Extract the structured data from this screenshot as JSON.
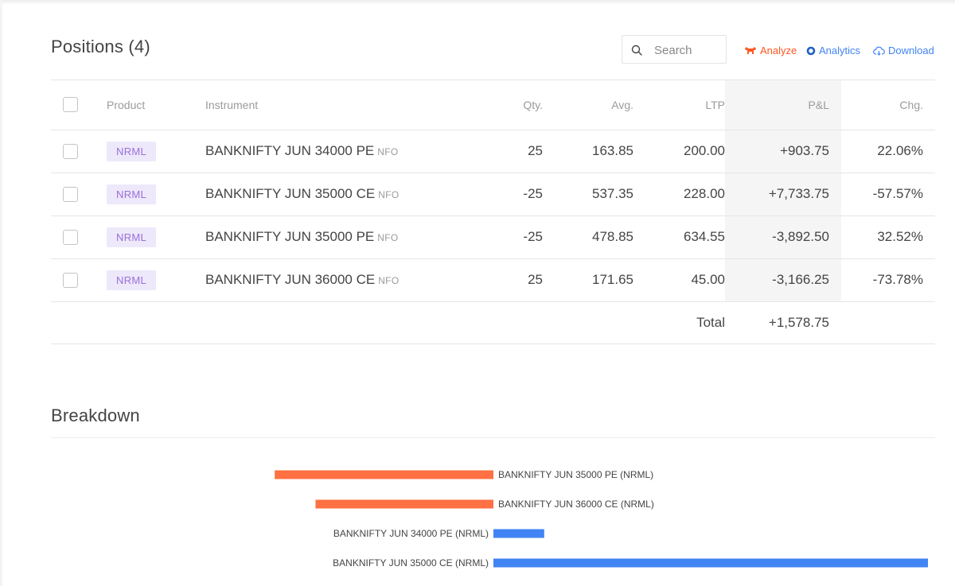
{
  "positions": {
    "title": "Positions (4)",
    "search": {
      "placeholder": "Search",
      "value": ""
    },
    "links": {
      "analyze": "Analyze",
      "analytics": "Analytics",
      "download": "Download"
    },
    "columns": {
      "product": "Product",
      "instrument": "Instrument",
      "qty": "Qty.",
      "avg": "Avg.",
      "ltp": "LTP",
      "pnl": "P&L",
      "chg": "Chg."
    },
    "rows": [
      {
        "product": "NRML",
        "instrument": "BANKNIFTY JUN 34000 PE",
        "exchange": "NFO",
        "qty": "25",
        "avg": "163.85",
        "ltp": "200.00",
        "pnl": "+903.75",
        "chg": "22.06%"
      },
      {
        "product": "NRML",
        "instrument": "BANKNIFTY JUN 35000 CE",
        "exchange": "NFO",
        "qty": "-25",
        "avg": "537.35",
        "ltp": "228.00",
        "pnl": "+7,733.75",
        "chg": "-57.57%"
      },
      {
        "product": "NRML",
        "instrument": "BANKNIFTY JUN 35000 PE",
        "exchange": "NFO",
        "qty": "-25",
        "avg": "478.85",
        "ltp": "634.55",
        "pnl": "-3,892.50",
        "chg": "32.52%"
      },
      {
        "product": "NRML",
        "instrument": "BANKNIFTY JUN 36000 CE",
        "exchange": "NFO",
        "qty": "25",
        "avg": "171.65",
        "ltp": "45.00",
        "pnl": "-3,166.25",
        "chg": "-73.78%"
      }
    ],
    "total": {
      "label": "Total",
      "value": "+1,578.75"
    }
  },
  "breakdown": {
    "title": "Breakdown"
  },
  "colors": {
    "profit": "#4caf50",
    "loss": "#ff5722",
    "accent_blue": "#4184f3",
    "badge_bg": "#ede8fa",
    "badge_text": "#9b6fd9",
    "bar_negative": "#ff7043",
    "bar_positive": "#4184f3"
  },
  "icons": {
    "search": "search-icon",
    "analyze": "bull-icon",
    "analytics": "ring-icon",
    "download": "cloud-download-icon"
  },
  "chart_data": {
    "type": "bar",
    "orientation": "horizontal",
    "categories": [
      "BANKNIFTY JUN 35000 PE (NRML)",
      "BANKNIFTY JUN 36000 CE (NRML)",
      "BANKNIFTY JUN 34000 PE (NRML)",
      "BANKNIFTY JUN 35000 CE (NRML)"
    ],
    "values": [
      -3892.5,
      -3166.25,
      903.75,
      7733.75
    ],
    "xlim": [
      -5500,
      7733.75
    ],
    "grid": false,
    "legend": "none",
    "colors": {
      "negative": "#ff7043",
      "positive": "#4184f3"
    }
  }
}
